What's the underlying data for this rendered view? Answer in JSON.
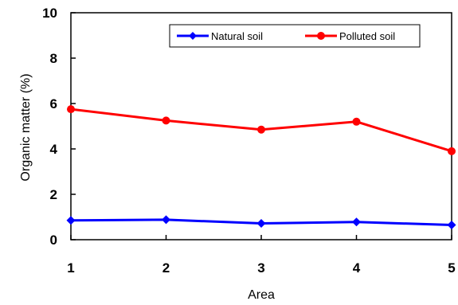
{
  "chart_data": {
    "type": "line",
    "title": "",
    "xlabel": "Area",
    "ylabel": "Organic matter (%)",
    "categories": [
      "1",
      "2",
      "3",
      "4",
      "5"
    ],
    "xlim": [
      1,
      5
    ],
    "ylim": [
      0,
      10
    ],
    "yticks": [
      "0",
      "2",
      "4",
      "6",
      "8",
      "10"
    ],
    "grid": false,
    "legend_position": "top-right",
    "series": [
      {
        "name": "Natural soil",
        "color": "#0000ff",
        "marker": "diamond",
        "values": [
          0.85,
          0.88,
          0.72,
          0.78,
          0.65
        ]
      },
      {
        "name": "Polluted soil",
        "color": "#ff0000",
        "marker": "circle",
        "values": [
          5.75,
          5.25,
          4.85,
          5.2,
          3.9
        ]
      }
    ]
  }
}
